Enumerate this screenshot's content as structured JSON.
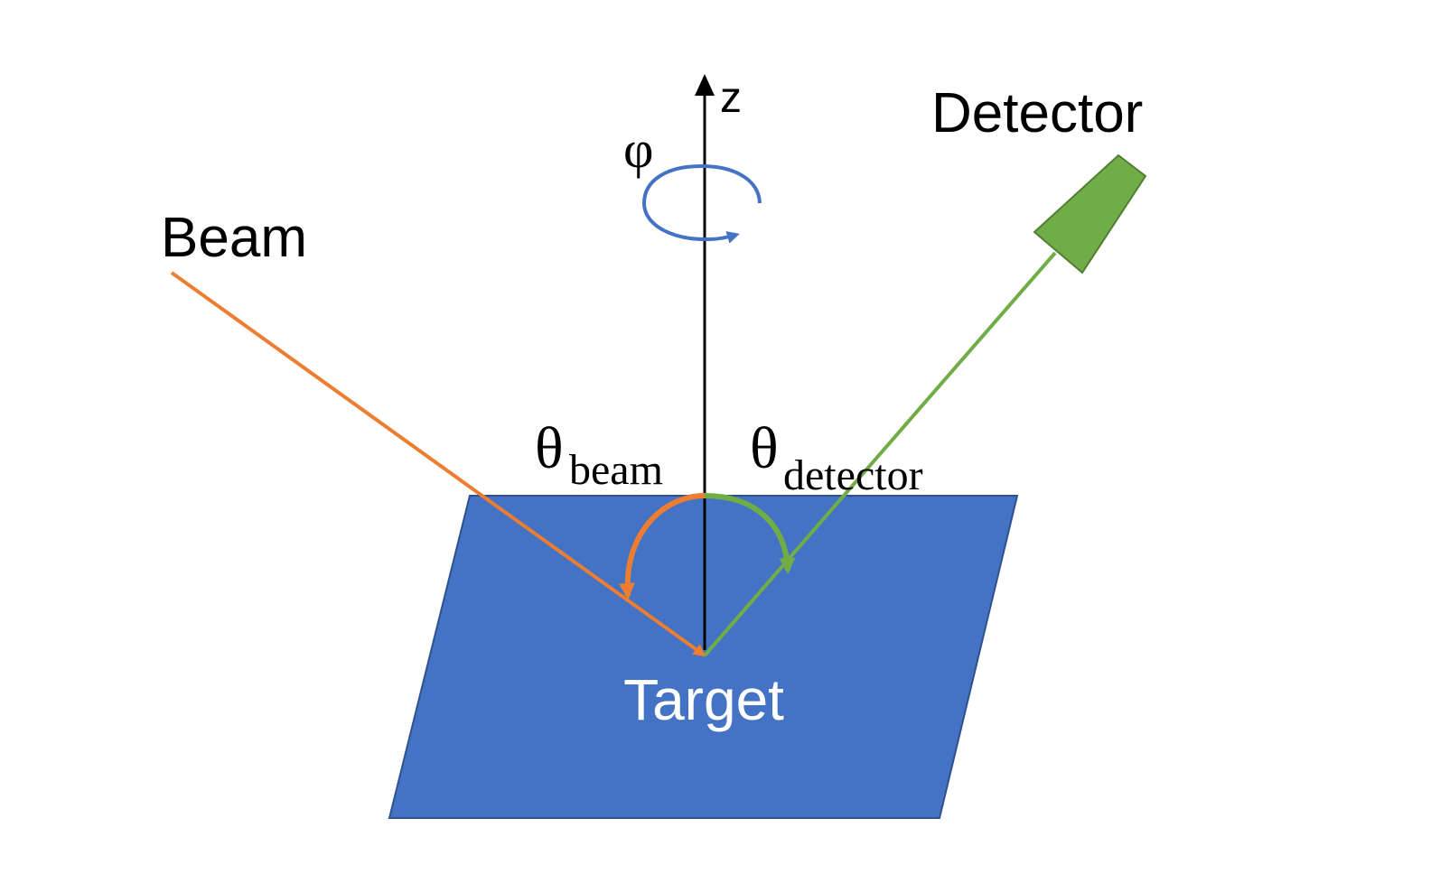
{
  "labels": {
    "z_axis": "z",
    "detector": "Detector",
    "beam": "Beam",
    "phi": "φ",
    "theta": "θ",
    "theta_beam_sub": "beam",
    "theta_detector_sub": "detector",
    "target": "Target"
  },
  "colors": {
    "beam": "#ED7D31",
    "detector": "#70AD47",
    "target_fill": "#4472C4",
    "target_stroke": "#2F528F",
    "rotation_arrow": "#4472C4",
    "axis": "#000000",
    "target_text": "#FFFFFF"
  },
  "icons": {
    "detector": "detector-trapezoid-icon",
    "rotation": "rotation-arrow-icon"
  }
}
